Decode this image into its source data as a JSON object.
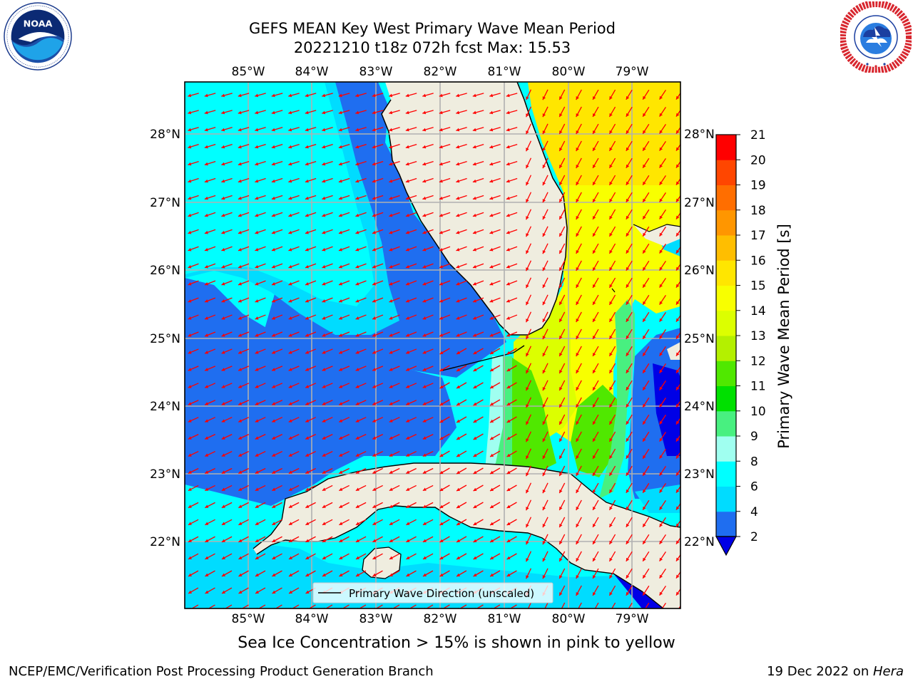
{
  "title": {
    "line1": "GEFS MEAN Key West Primary Wave Mean Period",
    "line2": "20221210 t18z 072h fcst   Max: 15.53"
  },
  "map": {
    "lon_labels": [
      "85°W",
      "84°W",
      "83°W",
      "82°W",
      "81°W",
      "80°W",
      "79°W"
    ],
    "lat_labels": [
      "28°N",
      "27°N",
      "26°N",
      "25°N",
      "24°N",
      "23°N",
      "22°N"
    ],
    "lon_range": [
      -86.0,
      -78.3
    ],
    "lat_range": [
      21.0,
      28.8
    ],
    "legend_label": "Primary Wave Direction (unscaled)",
    "arrow_color": "#ff0000",
    "land_color": "#efeddf",
    "gridline_color": "#b0b0b0"
  },
  "colorbar": {
    "label": "Primary Wave Mean Period [s]",
    "ticks": [
      "2",
      "4",
      "6",
      "8",
      "9",
      "10",
      "11",
      "12",
      "13",
      "14",
      "15",
      "16",
      "17",
      "18",
      "19",
      "20",
      "21"
    ],
    "bins": [
      {
        "from": 2,
        "to": 4,
        "color": "#1f6ef0"
      },
      {
        "from": 4,
        "to": 6,
        "color": "#00dcff"
      },
      {
        "from": 6,
        "to": 8,
        "color": "#00ffff"
      },
      {
        "from": 8,
        "to": 9,
        "color": "#a0fff0"
      },
      {
        "from": 9,
        "to": 10,
        "color": "#48f080"
      },
      {
        "from": 10,
        "to": 11,
        "color": "#00e000"
      },
      {
        "from": 11,
        "to": 12,
        "color": "#50e800"
      },
      {
        "from": 12,
        "to": 13,
        "color": "#b4f000"
      },
      {
        "from": 13,
        "to": 14,
        "color": "#dcff00"
      },
      {
        "from": 14,
        "to": 15,
        "color": "#f8ff00"
      },
      {
        "from": 15,
        "to": 16,
        "color": "#ffe600"
      },
      {
        "from": 16,
        "to": 17,
        "color": "#ffbe00"
      },
      {
        "from": 17,
        "to": 18,
        "color": "#ff9600"
      },
      {
        "from": 18,
        "to": 19,
        "color": "#ff6e00"
      },
      {
        "from": 19,
        "to": 20,
        "color": "#ff4600"
      },
      {
        "from": 20,
        "to": 21,
        "color": "#ff0000"
      }
    ],
    "under_color": "#0000e6"
  },
  "sea_ice_note": "Sea Ice Concentration > 15% is shown in pink to yellow",
  "footer": {
    "left": "NCEP/EMC/Verification Post Processing Product Generation Branch",
    "right_date": "19 Dec 2022 on ",
    "right_host": "Hera"
  }
}
